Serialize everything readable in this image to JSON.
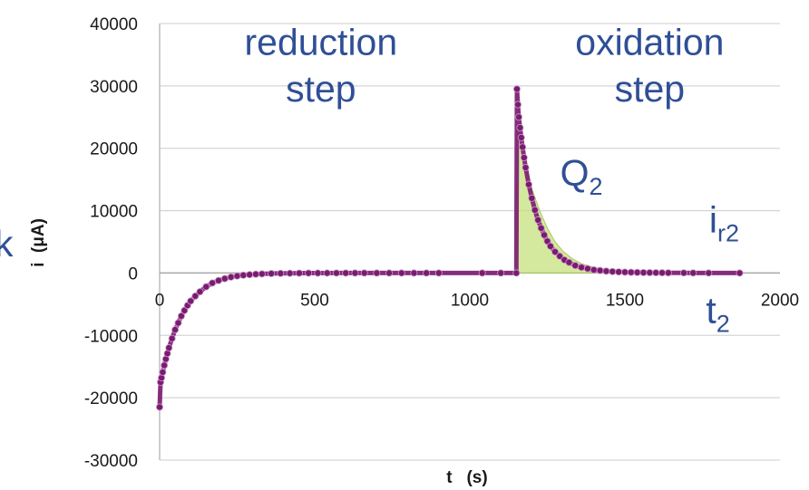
{
  "chart_data": {
    "type": "scatter",
    "title": "",
    "xlabel": "t   (s)",
    "ylabel": "i  (μA)",
    "xlim": [
      0,
      2000
    ],
    "ylim": [
      -30000,
      40000
    ],
    "x_ticks": [
      "0",
      "500",
      "1000",
      "1500",
      "2000"
    ],
    "y_ticks": [
      "40000",
      "30000",
      "20000",
      "10000",
      "0",
      "-10000",
      "-20000",
      "-30000"
    ],
    "grid": true,
    "series": [
      {
        "color": "#7b1a73",
        "x": [
          0,
          3,
          6,
          10,
          15,
          20,
          25,
          30,
          40,
          50,
          60,
          70,
          80,
          90,
          100,
          115,
          130,
          150,
          170,
          190,
          210,
          230,
          250,
          270,
          290,
          310,
          330,
          360,
          390,
          420,
          450,
          480,
          510,
          540,
          570,
          600,
          630,
          660,
          700,
          740,
          780,
          820,
          860,
          900,
          1040,
          1100,
          1150,
          1152,
          1155,
          1158,
          1162,
          1166,
          1170,
          1175,
          1180,
          1190,
          1200,
          1210,
          1220,
          1230,
          1240,
          1250,
          1260,
          1275,
          1290,
          1305,
          1320,
          1340,
          1360,
          1380,
          1400,
          1420,
          1440,
          1460,
          1480,
          1500,
          1520,
          1540,
          1560,
          1580,
          1600,
          1620,
          1640,
          1690,
          1720,
          1770,
          1870
        ],
        "y": [
          -21500,
          -17500,
          -16800,
          -15900,
          -14800,
          -13800,
          -12900,
          -12000,
          -10500,
          -9100,
          -8000,
          -6900,
          -6000,
          -5200,
          -4500,
          -3700,
          -3000,
          -2200,
          -1600,
          -1200,
          -900,
          -650,
          -480,
          -350,
          -260,
          -190,
          -140,
          -90,
          -60,
          -40,
          -25,
          -15,
          -10,
          -5,
          -3,
          -2,
          -1,
          0,
          0,
          0,
          0,
          0,
          0,
          0,
          0,
          0,
          0,
          29500,
          27000,
          25000,
          23300,
          21700,
          20200,
          18500,
          16900,
          14200,
          12000,
          10100,
          8500,
          7200,
          6100,
          5100,
          4300,
          3400,
          2700,
          2100,
          1700,
          1200,
          900,
          700,
          500,
          400,
          300,
          230,
          180,
          140,
          110,
          90,
          70,
          60,
          50,
          40,
          30,
          20,
          10,
          5,
          0
        ]
      }
    ],
    "shaded_region": {
      "label": "Q2",
      "color": "#c6e27c",
      "x": [
        1150,
        1150,
        1160,
        1175,
        1200,
        1225,
        1250,
        1275,
        1300,
        1330,
        1360,
        1400,
        1450,
        1500,
        1550,
        1600,
        1650,
        1650
      ],
      "y": [
        0,
        30000,
        23500,
        19000,
        13500,
        10000,
        7200,
        5000,
        3500,
        2300,
        1500,
        900,
        500,
        300,
        180,
        100,
        50,
        0
      ]
    },
    "annotations": [
      {
        "text": "reduction",
        "x": 520,
        "y": 35000
      },
      {
        "text": "step",
        "x": 520,
        "y": 27500
      },
      {
        "text": "oxidation",
        "x": 1580,
        "y": 35000
      },
      {
        "text": "step",
        "x": 1580,
        "y": 27500
      },
      {
        "text": "Q",
        "sub": "2",
        "x": 1360,
        "y": 14000
      },
      {
        "text": "i",
        "sub": "r2",
        "x": 1820,
        "y": 6500
      },
      {
        "text": "t",
        "sub": "2",
        "x": 1800,
        "y": -8000
      }
    ],
    "left_fragment": "k"
  }
}
